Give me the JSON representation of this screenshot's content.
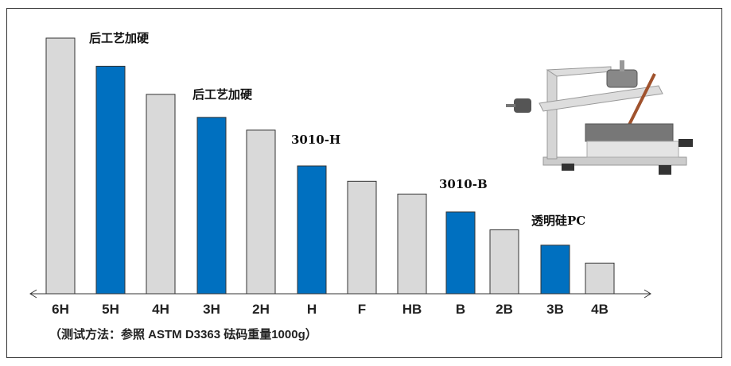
{
  "chart_data": {
    "type": "bar",
    "title": "",
    "xlabel": "",
    "ylabel": "",
    "categories": [
      "6H",
      "5H",
      "4H",
      "3H",
      "2H",
      "H",
      "F",
      "HB",
      "B",
      "2B",
      "3B",
      "4B"
    ],
    "values": [
      100,
      89,
      78,
      69,
      64,
      50,
      44,
      39,
      32,
      25,
      19,
      12
    ],
    "highlighted": [
      false,
      true,
      false,
      true,
      false,
      true,
      false,
      false,
      true,
      false,
      true,
      false
    ],
    "colors": {
      "default": "#d9d9d9",
      "highlight": "#0070c0",
      "outline": "#333333"
    },
    "ylim": [
      0,
      100
    ],
    "grid": false,
    "annotations": [
      {
        "text": "后工艺加硬",
        "category": "5H"
      },
      {
        "text": "后工艺加硬",
        "category": "3H"
      },
      {
        "text": "3010-H",
        "category": "H"
      },
      {
        "text": "3010-B",
        "category": "B"
      },
      {
        "text": "透明硅PC",
        "category": "3B"
      }
    ],
    "note": "（测试方法：参照 ASTM  D3363    砝码重量1000g）"
  },
  "image": {
    "icon": "pencil-hardness-tester-photo"
  }
}
